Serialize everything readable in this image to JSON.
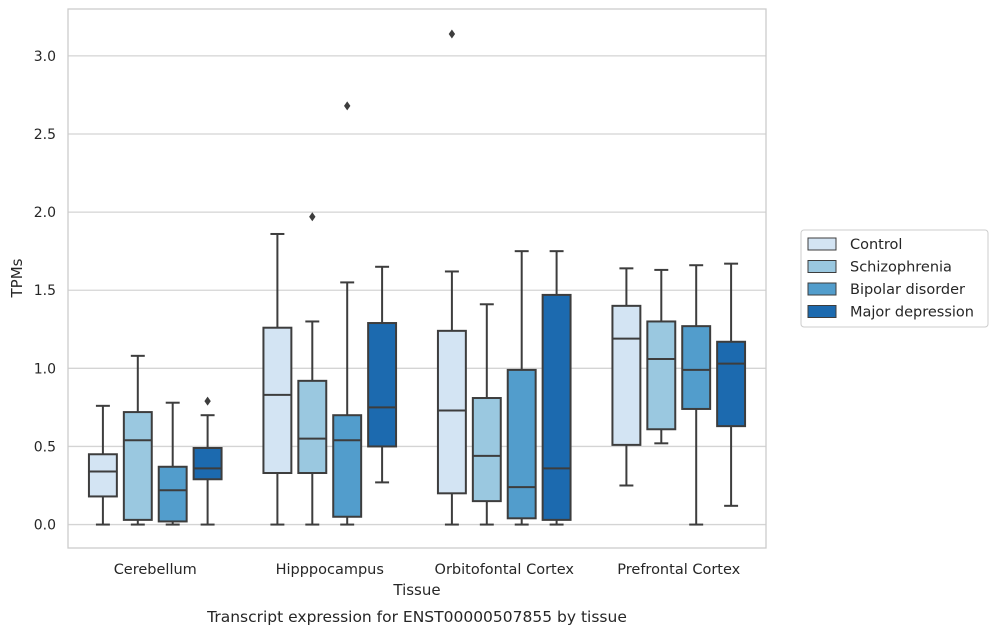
{
  "chart_data": {
    "type": "box",
    "title": "Transcript expression for ENST00000507855 by tissue",
    "xlabel": "Tissue",
    "ylabel": "TPMs",
    "ylim": [
      -0.15,
      3.3
    ],
    "yticks": [
      0.0,
      0.5,
      1.0,
      1.5,
      2.0,
      2.5,
      3.0
    ],
    "ytick_labels": [
      "0.0",
      "0.5",
      "1.0",
      "1.5",
      "2.0",
      "2.5",
      "3.0"
    ],
    "grid": "horizontal",
    "legend_position": "right",
    "categories": [
      "Cerebellum",
      "Hipppocampus",
      "Orbitofontal Cortex",
      "Prefrontal Cortex"
    ],
    "series": [
      {
        "name": "Control",
        "color": "#d3e4f3",
        "boxes": [
          {
            "whislo": 0.0,
            "q1": 0.18,
            "med": 0.34,
            "q3": 0.45,
            "whishi": 0.76,
            "fliers": []
          },
          {
            "whislo": 0.0,
            "q1": 0.33,
            "med": 0.83,
            "q3": 1.26,
            "whishi": 1.86,
            "fliers": []
          },
          {
            "whislo": 0.0,
            "q1": 0.2,
            "med": 0.73,
            "q3": 1.24,
            "whishi": 1.62,
            "fliers": [
              3.14
            ]
          },
          {
            "whislo": 0.25,
            "q1": 0.51,
            "med": 1.19,
            "q3": 1.4,
            "whishi": 1.64,
            "fliers": []
          }
        ]
      },
      {
        "name": "Schizophrenia",
        "color": "#9ac8e0",
        "boxes": [
          {
            "whislo": 0.0,
            "q1": 0.03,
            "med": 0.54,
            "q3": 0.72,
            "whishi": 1.08,
            "fliers": []
          },
          {
            "whislo": 0.0,
            "q1": 0.33,
            "med": 0.55,
            "q3": 0.92,
            "whishi": 1.3,
            "fliers": [
              1.97
            ]
          },
          {
            "whislo": 0.0,
            "q1": 0.15,
            "med": 0.44,
            "q3": 0.81,
            "whishi": 1.41,
            "fliers": []
          },
          {
            "whislo": 0.52,
            "q1": 0.61,
            "med": 1.06,
            "q3": 1.3,
            "whishi": 1.63,
            "fliers": []
          }
        ]
      },
      {
        "name": "Bipolar disorder",
        "color": "#529dcc",
        "boxes": [
          {
            "whislo": 0.0,
            "q1": 0.02,
            "med": 0.22,
            "q3": 0.37,
            "whishi": 0.78,
            "fliers": []
          },
          {
            "whislo": 0.0,
            "q1": 0.05,
            "med": 0.54,
            "q3": 0.7,
            "whishi": 1.55,
            "fliers": [
              2.68
            ]
          },
          {
            "whislo": 0.0,
            "q1": 0.04,
            "med": 0.24,
            "q3": 0.99,
            "whishi": 1.75,
            "fliers": []
          },
          {
            "whislo": 0.0,
            "q1": 0.74,
            "med": 0.99,
            "q3": 1.27,
            "whishi": 1.66,
            "fliers": []
          }
        ]
      },
      {
        "name": "Major depression",
        "color": "#1c6aaf",
        "boxes": [
          {
            "whislo": 0.0,
            "q1": 0.29,
            "med": 0.36,
            "q3": 0.49,
            "whishi": 0.7,
            "fliers": [
              0.79
            ]
          },
          {
            "whislo": 0.27,
            "q1": 0.5,
            "med": 0.75,
            "q3": 1.29,
            "whishi": 1.65,
            "fliers": []
          },
          {
            "whislo": 0.0,
            "q1": 0.03,
            "med": 0.36,
            "q3": 1.47,
            "whishi": 1.75,
            "fliers": []
          },
          {
            "whislo": 0.12,
            "q1": 0.63,
            "med": 1.03,
            "q3": 1.17,
            "whishi": 1.67,
            "fliers": []
          }
        ]
      }
    ],
    "colors": {
      "grid": "#d4d4d4",
      "frame": "#cccccc",
      "box_edge": "#3d3d3d",
      "text": "#262626"
    }
  }
}
